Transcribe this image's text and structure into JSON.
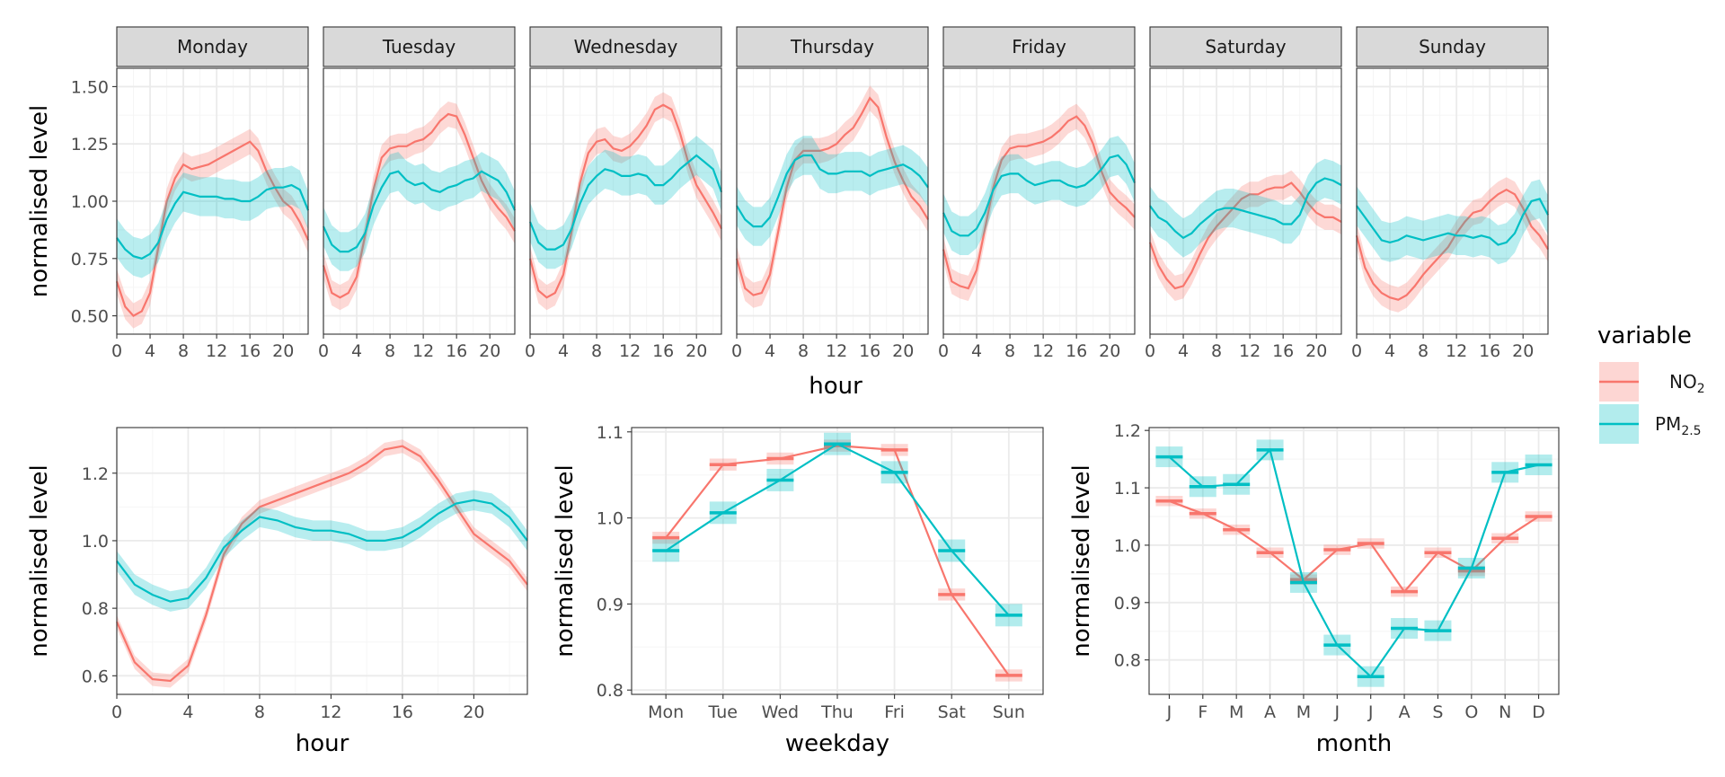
{
  "colors": {
    "no2": "#F8766D",
    "pm25": "#00BFC4",
    "no2_band": "#F8766D",
    "pm25_band": "#00BFC4",
    "strip_bg": "#D9D9D9",
    "grid_major": "#EBEBEB",
    "grid_minor": "#F5F5F5",
    "axis_text": "#4D4D4D",
    "title_text": "#000000"
  },
  "legend": {
    "title": "variable",
    "items": [
      {
        "key": "no2",
        "label": "NO",
        "sub": "2"
      },
      {
        "key": "pm25",
        "label": "PM",
        "sub": "2.5"
      }
    ]
  },
  "chart_data": [
    {
      "type": "line",
      "id": "hour_by_weekday",
      "facets": [
        "Monday",
        "Tuesday",
        "Wednesday",
        "Thursday",
        "Friday",
        "Saturday",
        "Sunday"
      ],
      "xlabel": "hour",
      "ylabel": "normalised level",
      "x_ticks": [
        0,
        4,
        8,
        12,
        16,
        20
      ],
      "xlim": [
        0,
        23
      ],
      "y_ticks": [
        "0.50",
        "0.75",
        "1.00",
        "1.25",
        "1.50"
      ],
      "ylim": [
        0.42,
        1.58
      ],
      "grid": true,
      "band_halfwidth": {
        "no2": 0.055,
        "pm25": 0.085
      },
      "series": [
        {
          "name": "NO2",
          "key": "no2",
          "values": [
            [
              0.65,
              0.54,
              0.5,
              0.52,
              0.6,
              0.8,
              1.0,
              1.1,
              1.16,
              1.14,
              1.15,
              1.16,
              1.18,
              1.2,
              1.22,
              1.24,
              1.26,
              1.22,
              1.13,
              1.06,
              1.0,
              0.97,
              0.91,
              0.83
            ],
            [
              0.72,
              0.6,
              0.58,
              0.6,
              0.67,
              0.85,
              1.05,
              1.19,
              1.23,
              1.24,
              1.24,
              1.26,
              1.27,
              1.3,
              1.35,
              1.38,
              1.37,
              1.29,
              1.19,
              1.09,
              1.02,
              0.97,
              0.93,
              0.87
            ],
            [
              0.75,
              0.61,
              0.58,
              0.6,
              0.68,
              0.87,
              1.08,
              1.21,
              1.26,
              1.27,
              1.23,
              1.22,
              1.24,
              1.28,
              1.33,
              1.4,
              1.42,
              1.4,
              1.3,
              1.17,
              1.07,
              1.01,
              0.95,
              0.88
            ],
            [
              0.75,
              0.62,
              0.59,
              0.6,
              0.68,
              0.87,
              1.06,
              1.18,
              1.22,
              1.22,
              1.22,
              1.23,
              1.25,
              1.29,
              1.32,
              1.38,
              1.45,
              1.41,
              1.28,
              1.17,
              1.09,
              1.02,
              0.98,
              0.92
            ],
            [
              0.79,
              0.65,
              0.63,
              0.62,
              0.7,
              0.88,
              1.06,
              1.18,
              1.23,
              1.24,
              1.24,
              1.25,
              1.26,
              1.28,
              1.31,
              1.35,
              1.37,
              1.33,
              1.25,
              1.13,
              1.04,
              1.0,
              0.97,
              0.93
            ],
            [
              0.82,
              0.72,
              0.66,
              0.62,
              0.63,
              0.69,
              0.77,
              0.84,
              0.89,
              0.93,
              0.97,
              1.01,
              1.03,
              1.03,
              1.05,
              1.06,
              1.06,
              1.08,
              1.04,
              0.99,
              0.95,
              0.93,
              0.93,
              0.91
            ],
            [
              0.85,
              0.71,
              0.64,
              0.6,
              0.58,
              0.57,
              0.59,
              0.63,
              0.68,
              0.72,
              0.76,
              0.8,
              0.86,
              0.91,
              0.95,
              0.96,
              1.0,
              1.03,
              1.05,
              1.03,
              0.97,
              0.89,
              0.85,
              0.79
            ]
          ]
        },
        {
          "name": "PM2.5",
          "key": "pm25",
          "values": [
            [
              0.84,
              0.79,
              0.76,
              0.75,
              0.77,
              0.82,
              0.92,
              0.99,
              1.04,
              1.03,
              1.02,
              1.02,
              1.02,
              1.01,
              1.01,
              1.0,
              1.0,
              1.02,
              1.05,
              1.06,
              1.06,
              1.07,
              1.05,
              0.96
            ],
            [
              0.89,
              0.81,
              0.78,
              0.78,
              0.8,
              0.86,
              0.98,
              1.06,
              1.12,
              1.13,
              1.09,
              1.07,
              1.08,
              1.05,
              1.04,
              1.06,
              1.07,
              1.09,
              1.1,
              1.13,
              1.11,
              1.09,
              1.04,
              0.96
            ],
            [
              0.91,
              0.82,
              0.79,
              0.79,
              0.81,
              0.88,
              0.99,
              1.07,
              1.11,
              1.14,
              1.13,
              1.11,
              1.11,
              1.12,
              1.11,
              1.07,
              1.07,
              1.1,
              1.14,
              1.17,
              1.2,
              1.17,
              1.14,
              1.04
            ],
            [
              0.98,
              0.92,
              0.89,
              0.89,
              0.93,
              1.02,
              1.12,
              1.18,
              1.2,
              1.2,
              1.14,
              1.12,
              1.12,
              1.13,
              1.13,
              1.13,
              1.11,
              1.13,
              1.14,
              1.15,
              1.16,
              1.14,
              1.11,
              1.06
            ],
            [
              0.95,
              0.87,
              0.85,
              0.85,
              0.88,
              0.95,
              1.05,
              1.11,
              1.12,
              1.12,
              1.09,
              1.07,
              1.08,
              1.09,
              1.09,
              1.07,
              1.06,
              1.07,
              1.1,
              1.14,
              1.19,
              1.2,
              1.16,
              1.08
            ],
            [
              0.98,
              0.93,
              0.91,
              0.87,
              0.84,
              0.86,
              0.9,
              0.93,
              0.96,
              0.97,
              0.97,
              0.96,
              0.95,
              0.94,
              0.93,
              0.92,
              0.9,
              0.9,
              0.94,
              1.03,
              1.08,
              1.1,
              1.09,
              1.07
            ],
            [
              0.98,
              0.93,
              0.88,
              0.83,
              0.82,
              0.83,
              0.85,
              0.84,
              0.83,
              0.84,
              0.85,
              0.86,
              0.85,
              0.85,
              0.84,
              0.85,
              0.84,
              0.81,
              0.82,
              0.86,
              0.94,
              1.0,
              1.01,
              0.94
            ]
          ]
        }
      ]
    },
    {
      "type": "line",
      "id": "hour",
      "xlabel": "hour",
      "ylabel": "normalised level",
      "x": [
        0,
        1,
        2,
        3,
        4,
        5,
        6,
        7,
        8,
        9,
        10,
        11,
        12,
        13,
        14,
        15,
        16,
        17,
        18,
        19,
        20,
        21,
        22,
        23
      ],
      "x_ticks": [
        0,
        4,
        8,
        12,
        16,
        20
      ],
      "xlim": [
        0,
        23
      ],
      "y_ticks": [
        "0.6",
        "0.8",
        "1.0",
        "1.2"
      ],
      "ylim": [
        0.545,
        1.335
      ],
      "grid": true,
      "band_halfwidth": {
        "no2": 0.02,
        "pm25": 0.03
      },
      "series": [
        {
          "name": "NO2",
          "key": "no2",
          "values": [
            0.76,
            0.64,
            0.59,
            0.585,
            0.63,
            0.78,
            0.96,
            1.05,
            1.1,
            1.12,
            1.14,
            1.16,
            1.18,
            1.2,
            1.23,
            1.27,
            1.28,
            1.25,
            1.18,
            1.1,
            1.02,
            0.98,
            0.94,
            0.87
          ]
        },
        {
          "name": "PM2.5",
          "key": "pm25",
          "values": [
            0.94,
            0.87,
            0.84,
            0.82,
            0.83,
            0.89,
            0.98,
            1.03,
            1.07,
            1.06,
            1.04,
            1.03,
            1.03,
            1.02,
            1.0,
            1.0,
            1.01,
            1.04,
            1.08,
            1.11,
            1.12,
            1.11,
            1.07,
            1.0
          ]
        }
      ]
    },
    {
      "type": "line",
      "id": "weekday",
      "xlabel": "weekday",
      "ylabel": "normalised level",
      "categories": [
        "Mon",
        "Tue",
        "Wed",
        "Thu",
        "Fri",
        "Sat",
        "Sun"
      ],
      "y_ticks": [
        "0.8",
        "0.9",
        "1.0",
        "1.1"
      ],
      "ylim": [
        0.795,
        1.105
      ],
      "grid": true,
      "band_halfwidth": {
        "no2": 0.007,
        "pm25": 0.013
      },
      "series": [
        {
          "name": "NO2",
          "key": "no2",
          "values": [
            0.977,
            1.062,
            1.069,
            1.084,
            1.079,
            0.911,
            0.817
          ]
        },
        {
          "name": "PM2.5",
          "key": "pm25",
          "values": [
            0.962,
            1.006,
            1.044,
            1.086,
            1.053,
            0.962,
            0.887
          ]
        }
      ]
    },
    {
      "type": "line",
      "id": "month",
      "xlabel": "month",
      "ylabel": "normalised level",
      "categories": [
        "J",
        "F",
        "M",
        "A",
        "M",
        "J",
        "J",
        "A",
        "S",
        "O",
        "N",
        "D"
      ],
      "y_ticks": [
        "0.8",
        "0.9",
        "1.0",
        "1.1",
        "1.2"
      ],
      "ylim": [
        0.74,
        1.205
      ],
      "grid": true,
      "band_halfwidth": {
        "no2": 0.009,
        "pm25": 0.018
      },
      "series": [
        {
          "name": "NO2",
          "key": "no2",
          "values": [
            1.077,
            1.055,
            1.027,
            0.987,
            0.94,
            0.992,
            1.003,
            0.919,
            0.987,
            0.955,
            1.012,
            1.05
          ]
        },
        {
          "name": "PM2.5",
          "key": "pm25",
          "values": [
            1.154,
            1.102,
            1.106,
            1.166,
            0.935,
            0.826,
            0.771,
            0.855,
            0.851,
            0.96,
            1.127,
            1.14
          ]
        }
      ]
    }
  ]
}
